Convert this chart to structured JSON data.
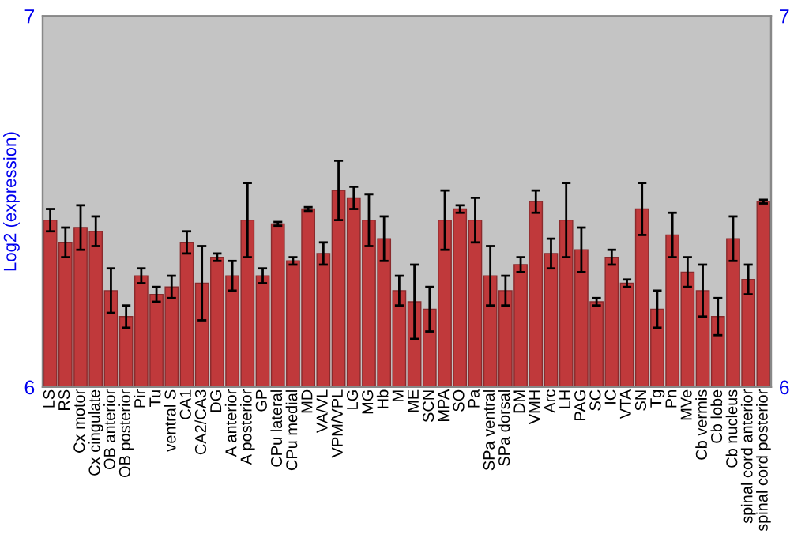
{
  "chart_data": {
    "type": "bar",
    "ylabel": "Log2 (expression)",
    "categories": [
      "LS",
      "RS",
      "Cx motor",
      "Cx cingulate",
      "OB anterior",
      "OB posterior",
      "Pir",
      "Tu",
      "ventral S",
      "CA1",
      "CA2/CA3",
      "DG",
      "A anterior",
      "A posterior",
      "GP",
      "CPu lateral",
      "CPu medial",
      "MD",
      "VA/VL",
      "VPM/VPL",
      "LG",
      "MG",
      "Hb",
      "M",
      "ME",
      "SCN",
      "MPA",
      "SO",
      "Pa",
      "SPa ventral",
      "SPa dorsal",
      "DM",
      "VMH",
      "Arc",
      "LH",
      "PAG",
      "SC",
      "IC",
      "VTA",
      "SN",
      "Tg",
      "Pn",
      "MVe",
      "Cb vermis",
      "Cb lobe",
      "Cb nucleus",
      "spinal cord anterior",
      "spinal cord posterior"
    ],
    "values": [
      6.45,
      6.39,
      6.43,
      6.42,
      6.26,
      6.19,
      6.3,
      6.25,
      6.27,
      6.39,
      6.28,
      6.35,
      6.3,
      6.45,
      6.3,
      6.44,
      6.34,
      6.48,
      6.36,
      6.53,
      6.51,
      6.45,
      6.4,
      6.26,
      6.23,
      6.21,
      6.45,
      6.48,
      6.45,
      6.3,
      6.26,
      6.33,
      6.5,
      6.36,
      6.45,
      6.37,
      6.23,
      6.35,
      6.28,
      6.48,
      6.21,
      6.41,
      6.31,
      6.26,
      6.19,
      6.4,
      6.29,
      6.5
    ],
    "errors": [
      0.03,
      0.04,
      0.06,
      0.04,
      0.06,
      0.03,
      0.02,
      0.02,
      0.03,
      0.03,
      0.1,
      0.01,
      0.04,
      0.1,
      0.02,
      0.005,
      0.01,
      0.005,
      0.03,
      0.08,
      0.03,
      0.07,
      0.06,
      0.04,
      0.1,
      0.06,
      0.08,
      0.01,
      0.06,
      0.08,
      0.04,
      0.02,
      0.03,
      0.04,
      0.1,
      0.06,
      0.01,
      0.02,
      0.01,
      0.07,
      0.05,
      0.06,
      0.04,
      0.07,
      0.05,
      0.06,
      0.04,
      0.005
    ],
    "color": "#c0393b",
    "ylim": [
      6,
      7
    ],
    "yticks": [
      6,
      7
    ],
    "y2lim": [
      6,
      7
    ],
    "y2ticks": [
      6,
      7
    ],
    "grid": false
  }
}
